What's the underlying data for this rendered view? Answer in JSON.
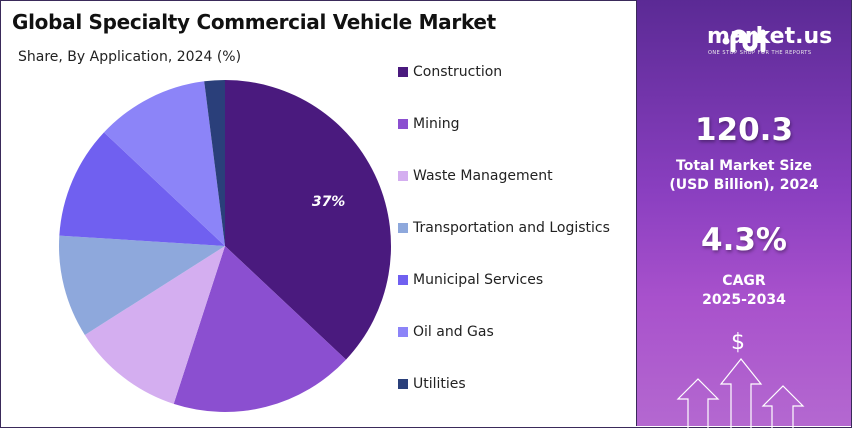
{
  "chart_data": {
    "type": "pie",
    "title": "Global Specialty Commercial Vehicle Market",
    "subtitle": "Share, By Application, 2024 (%)",
    "legend_position": "right",
    "categories": [
      "Construction",
      "Mining",
      "Waste Management",
      "Transportation and Logistics",
      "Municipal Services",
      "Oil and Gas",
      "Utilities"
    ],
    "values": [
      37,
      18,
      11,
      10,
      11,
      11,
      2
    ],
    "colors": [
      "#4a1a7e",
      "#8b4fd0",
      "#d4aef0",
      "#8ea8dc",
      "#7060f0",
      "#8c84f8",
      "#2a3f7a"
    ],
    "data_labels": [
      "37%",
      "",
      "",
      "",
      "",
      "",
      ""
    ]
  },
  "sidebar": {
    "logo_text": "market.us",
    "logo_tagline": "ONE STOP SHOP FOR THE REPORTS",
    "market_size": "120.3",
    "market_size_label_1": "Total Market Size",
    "market_size_label_2": "(USD Billion), 2024",
    "cagr": "4.3%",
    "cagr_label_1": "CAGR",
    "cagr_label_2": "2025-2034",
    "dollar_symbol": "$",
    "icon": "growth-arrows-icon"
  }
}
